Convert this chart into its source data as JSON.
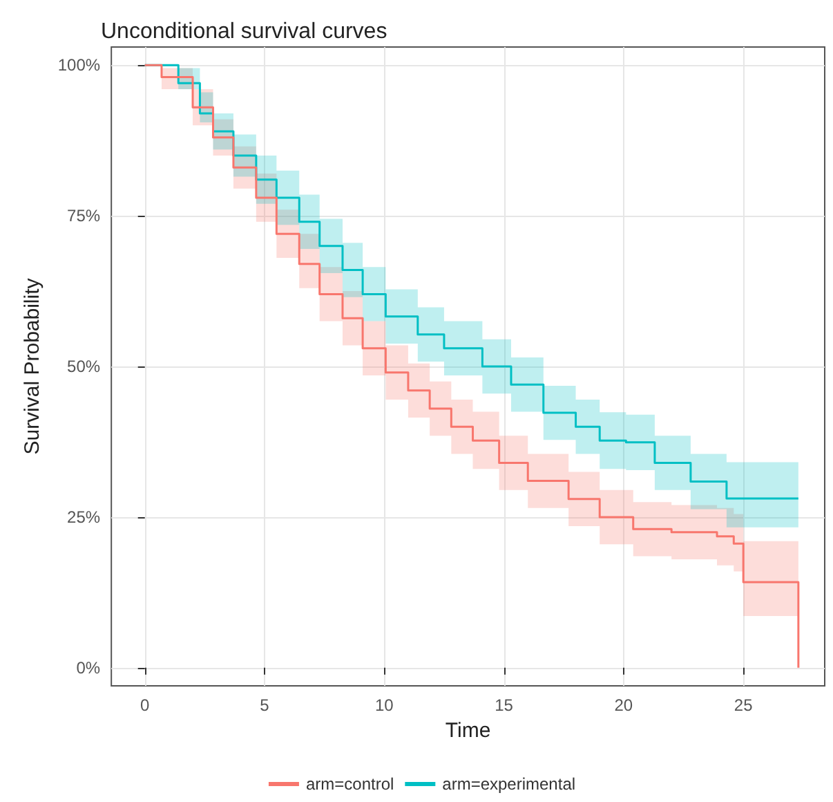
{
  "chart_data": {
    "type": "step",
    "title": "Unconditional survival curves",
    "xlabel": "Time",
    "ylabel": "Survival Probability",
    "grid": true,
    "legend": "bottom",
    "line_style": "solid",
    "marker": "none",
    "xlim": [
      -1.4,
      28.4
    ],
    "xticks": [
      0,
      5,
      10,
      15,
      20,
      25
    ],
    "ylim": [
      -3,
      103
    ],
    "yticks": [
      {
        "value": 0,
        "label": "0%"
      },
      {
        "value": 25,
        "label": "25%"
      },
      {
        "value": 50,
        "label": "50%"
      },
      {
        "value": 75,
        "label": "75%"
      },
      {
        "value": 100,
        "label": "100%"
      }
    ],
    "series": [
      {
        "name": "arm=control",
        "color": "#f8766d",
        "x": [
          0,
          0.7,
          2,
          2.85,
          3.7,
          4.65,
          5.5,
          6.45,
          7.3,
          8.26,
          9.1,
          10.06,
          11,
          11.9,
          12.8,
          13.7,
          14.8,
          16,
          17.7,
          19,
          20.4,
          22,
          23.9,
          24.6,
          25,
          27.3
        ],
        "values": [
          100,
          98,
          93,
          88,
          83,
          78,
          72,
          67,
          62,
          58,
          53,
          49,
          46,
          43,
          40,
          37.7,
          34,
          31,
          28,
          25,
          23,
          22.5,
          21.8,
          20.6,
          14.2,
          0
        ],
        "lower": [
          100,
          96,
          90,
          85,
          79.5,
          74,
          68,
          63,
          57.5,
          53.5,
          48.5,
          44.5,
          41.5,
          38.5,
          35.5,
          33,
          29.5,
          26.5,
          23.5,
          20.5,
          18.5,
          18,
          17,
          16,
          8.6,
          8.6
        ],
        "upper": [
          100,
          99.5,
          96,
          91,
          86.5,
          82,
          76,
          72,
          66.5,
          62.5,
          57.5,
          53.5,
          50.5,
          47.5,
          44.5,
          42.5,
          38.5,
          35.5,
          32.5,
          29.5,
          27.5,
          27,
          26.5,
          25.5,
          21,
          21
        ]
      },
      {
        "name": "arm=experimental",
        "color": "#00bfc4",
        "x": [
          0,
          1.4,
          2.3,
          2.85,
          3.7,
          4.65,
          5.5,
          6.45,
          7.3,
          8.26,
          9.1,
          10.06,
          11.4,
          12.5,
          14.1,
          15.3,
          16.65,
          18,
          19,
          20.1,
          21.3,
          22.8,
          24.3,
          27.3
        ],
        "values": [
          100,
          97,
          92,
          89,
          85,
          81,
          78,
          74,
          70,
          66,
          62,
          58.3,
          55.3,
          53,
          50,
          47,
          42.3,
          40,
          37.7,
          37.4,
          34,
          30.9,
          28.1,
          28.1
        ],
        "lower": [
          100,
          96,
          90.5,
          86,
          81.5,
          77,
          73.5,
          69.5,
          65.5,
          61.5,
          57.5,
          53.8,
          50.8,
          48.5,
          45.5,
          42.5,
          37.8,
          35.5,
          33,
          32.8,
          29.5,
          26.3,
          23.3,
          23.3
        ],
        "upper": [
          100,
          99.5,
          95.5,
          92,
          88.5,
          85,
          82.5,
          78.5,
          74.5,
          70.5,
          66.5,
          62.8,
          59.8,
          57.5,
          54.5,
          51.5,
          46.8,
          44.5,
          42.4,
          42,
          38.5,
          35.5,
          34.1,
          34.1
        ]
      }
    ]
  }
}
